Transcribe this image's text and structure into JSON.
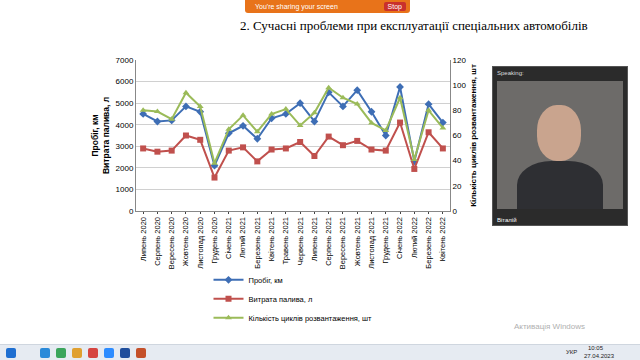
{
  "chart_data": {
    "type": "line",
    "title": "2. Сучасні проблеми при експлуатації спеціальних автомобілів",
    "ylabel": [
      "Пробіг, км",
      "Витрата палива, л"
    ],
    "y2label": "Кількість циклів розвантаження, шт",
    "categories": [
      "Липень 2020",
      "Серпень 2020",
      "Вересень 2020",
      "Жовтень 2020",
      "Листопад 2020",
      "Грудень 2020",
      "Січень 2021",
      "Лютий 2021",
      "Березень 2021",
      "Квітень 2021",
      "Травень 2021",
      "Червень 2021",
      "Липень 2021",
      "Серпень 2021",
      "Вересень 2021",
      "Жовтень 2021",
      "Листопад 2021",
      "Грудень 2021",
      "Січень 2022",
      "Лютий 2022",
      "Березень 2022",
      "Квітень 2022"
    ],
    "series": [
      {
        "name": "Пробіг, км",
        "color": "#3e6eb5",
        "marker": "diamond",
        "values": [
          4500,
          4150,
          4200,
          4850,
          4600,
          2100,
          3600,
          3950,
          3350,
          4300,
          4500,
          5000,
          4150,
          5500,
          4850,
          5600,
          4600,
          3500,
          5750,
          2300,
          4950,
          4100
        ]
      },
      {
        "name": "Витрата палива, л",
        "color": "#c0504d",
        "marker": "square",
        "values": [
          2900,
          2750,
          2800,
          3500,
          3300,
          1550,
          2800,
          2950,
          2300,
          2850,
          2900,
          3200,
          2550,
          3450,
          3050,
          3250,
          2850,
          2800,
          4100,
          1950,
          3650,
          2900
        ]
      },
      {
        "name": "Кількість циклів розвантаження, шт",
        "color": "#9bbb59",
        "marker": "triangle-up",
        "axis": "y2",
        "values": [
          80,
          79,
          73,
          94,
          83,
          38,
          65,
          76,
          63,
          77,
          81,
          68,
          78,
          98,
          90,
          85,
          70,
          64,
          90,
          41,
          80,
          66
        ]
      }
    ],
    "ylim": [
      0,
      7000
    ],
    "yticks": [
      0,
      1000,
      2000,
      3000,
      4000,
      5000,
      6000,
      7000
    ],
    "y2lim": [
      0,
      120
    ],
    "y2ticks": [
      0,
      20,
      40,
      60,
      80,
      100,
      120
    ],
    "grid": true,
    "legend": "bottom"
  },
  "screen": {
    "share_bar": {
      "text": "You're sharing your screen",
      "button": "Stop"
    },
    "camera": {
      "status": "Speaking:",
      "name": "Віталій"
    },
    "watermark": "Активація Windows",
    "taskbar": {
      "language": "УКР",
      "time": "10:05",
      "date": "27.04.2023"
    }
  }
}
